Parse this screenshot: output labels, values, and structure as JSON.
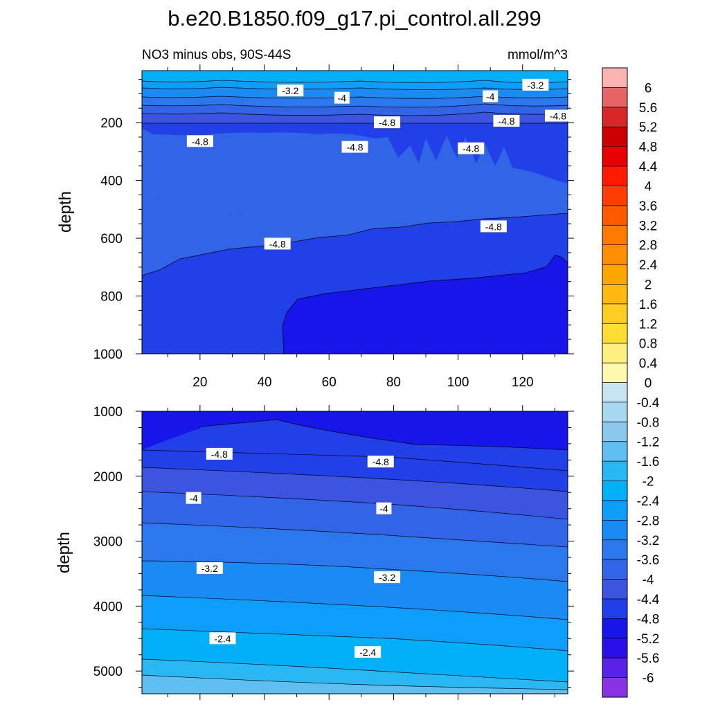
{
  "figure": {
    "title": "b.e20.B1850.f09_g17.pi_control.all.299",
    "subtitle_left": "NO3 minus obs, 90S-44S",
    "subtitle_right": "mmol/m^3"
  },
  "chart_data": [
    {
      "type": "contour",
      "panel": "upper",
      "ylabel": "depth",
      "xlabel": "",
      "xlim": [
        2,
        134
      ],
      "ylim": [
        1000,
        20
      ],
      "y_reversed": true,
      "x_ticks": [
        "20",
        "40",
        "60",
        "80",
        "100",
        "120"
      ],
      "y_ticks": [
        "200",
        "400",
        "600",
        "800",
        "1000"
      ],
      "contour_labels": [
        {
          "text": "-3.2",
          "x": 48,
          "y": 90
        },
        {
          "text": "-4",
          "x": 64,
          "y": 115
        },
        {
          "text": "-3.2",
          "x": 124,
          "y": 70
        },
        {
          "text": "-4",
          "x": 110,
          "y": 110
        },
        {
          "text": "-4.8",
          "x": 78,
          "y": 200
        },
        {
          "text": "-4.8",
          "x": 115,
          "y": 195
        },
        {
          "text": "-4.8",
          "x": 131,
          "y": 177
        },
        {
          "text": "-4.8",
          "x": 20,
          "y": 265
        },
        {
          "text": "-4.8",
          "x": 68,
          "y": 285
        },
        {
          "text": "-4.8",
          "x": 104,
          "y": 290
        },
        {
          "text": "-4.8",
          "x": 44,
          "y": 620
        },
        {
          "text": "-4.8",
          "x": 111,
          "y": 560
        }
      ]
    },
    {
      "type": "contour",
      "panel": "lower",
      "ylabel": "depth",
      "xlabel": "",
      "xlim": [
        2,
        134
      ],
      "ylim": [
        5350,
        1000
      ],
      "y_reversed": true,
      "y_ticks": [
        "1000",
        "2000",
        "3000",
        "4000",
        "5000"
      ],
      "contour_labels": [
        {
          "text": "-4.8",
          "x": 26,
          "y": 1660
        },
        {
          "text": "-4.8",
          "x": 76,
          "y": 1780
        },
        {
          "text": "-4",
          "x": 18,
          "y": 2340
        },
        {
          "text": "-4",
          "x": 77,
          "y": 2500
        },
        {
          "text": "-3.2",
          "x": 23,
          "y": 3420
        },
        {
          "text": "-3.2",
          "x": 78,
          "y": 3560
        },
        {
          "text": "-2.4",
          "x": 27,
          "y": 4500
        },
        {
          "text": "-2.4",
          "x": 72,
          "y": 4710
        }
      ]
    }
  ],
  "colorbar": {
    "labels": [
      "6",
      "5.6",
      "5.2",
      "4.8",
      "4.4",
      "4",
      "3.6",
      "3.2",
      "2.8",
      "2.4",
      "2",
      "1.6",
      "1.2",
      "0.8",
      "0.4",
      "0",
      "-0.4",
      "-0.8",
      "-1.2",
      "-1.6",
      "-2",
      "-2.4",
      "-2.8",
      "-3.2",
      "-3.6",
      "-4",
      "-4.4",
      "-4.8",
      "-5.2",
      "-5.6",
      "-6"
    ],
    "colors": [
      "#ffb3b3",
      "#e86464",
      "#d62828",
      "#cc0000",
      "#e60000",
      "#ff1a00",
      "#ff3d00",
      "#ff5a00",
      "#ff7a00",
      "#ff8f00",
      "#ffa500",
      "#ffb90f",
      "#ffcc22",
      "#ffde33",
      "#fff080",
      "#fff8b0",
      "#c6e4f2",
      "#a8d8f0",
      "#8ac8ee",
      "#5ebff0",
      "#2ab8f5",
      "#00b0f8",
      "#0d9dfa",
      "#1a8af5",
      "#2b78ee",
      "#3164e6",
      "#3b55e0",
      "#2240ea",
      "#1616ea",
      "#2a10e8",
      "#5a22e8",
      "#8833e6"
    ]
  }
}
